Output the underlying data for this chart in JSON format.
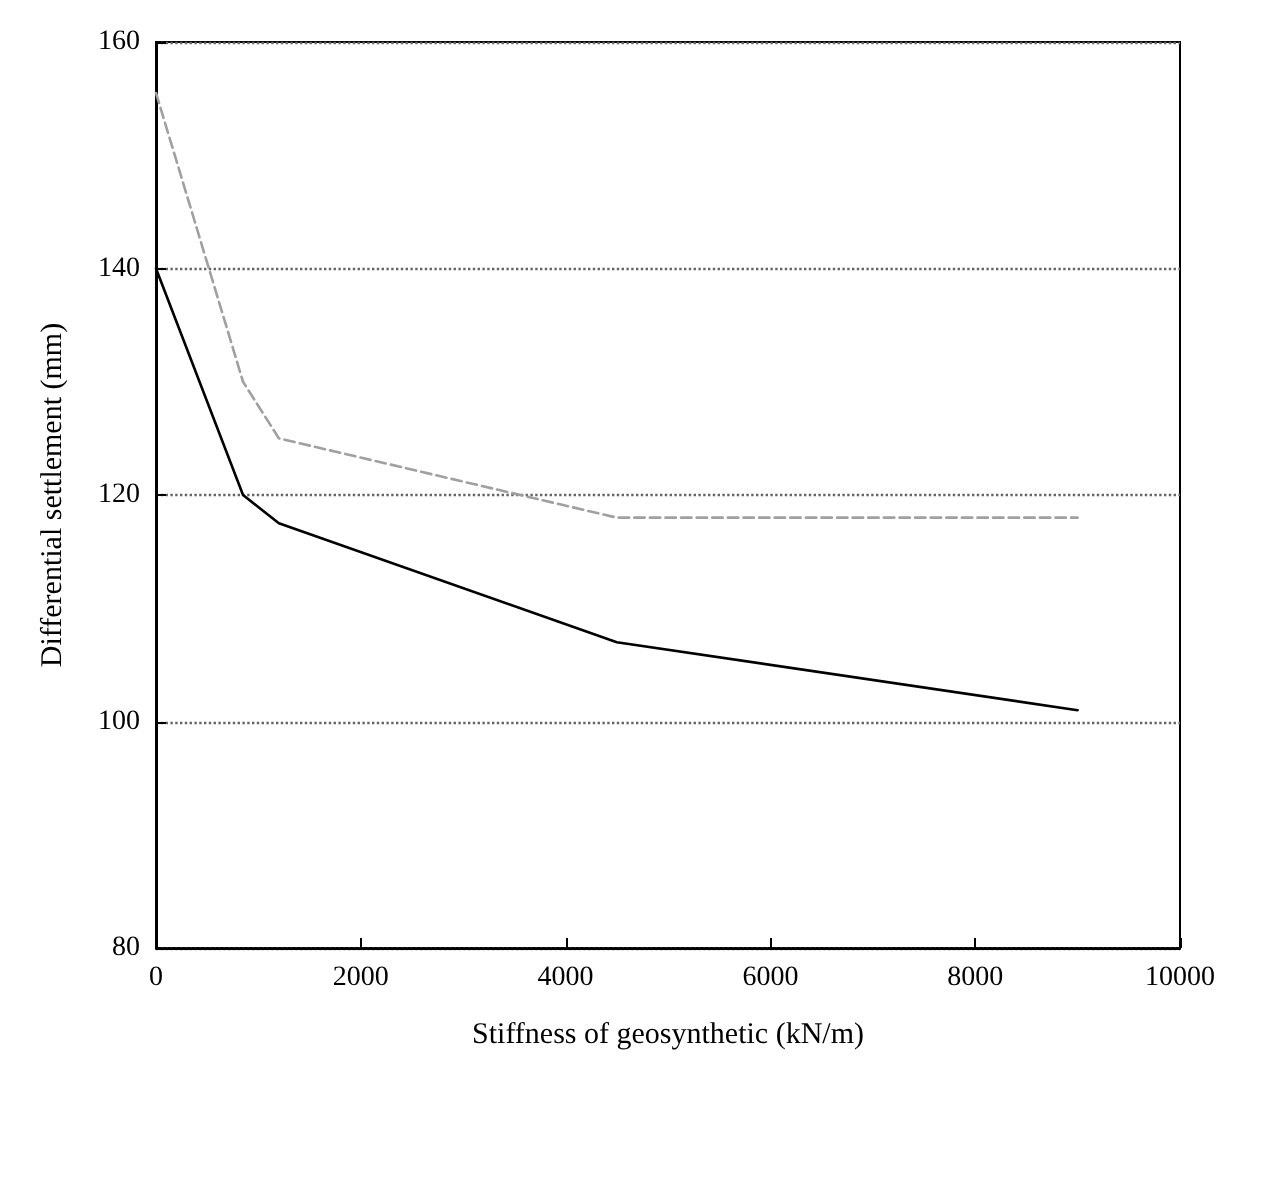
{
  "chart_data": {
    "type": "line",
    "xlabel": "Stiffness of geosynthetic (kN/m)",
    "ylabel": "Differential settlement (mm)",
    "xlim": [
      0,
      10000
    ],
    "xticks": [
      0,
      2000,
      4000,
      6000,
      8000,
      10000
    ],
    "ylim": [
      80,
      160
    ],
    "yticks": [
      80,
      100,
      120,
      140,
      160
    ],
    "grid": "y",
    "marker": "none",
    "series": [
      {
        "color": "#000000",
        "line_style": "solid",
        "x": [
          0,
          850,
          1200,
          4500,
          9000
        ],
        "values": [
          140,
          120,
          117.5,
          107,
          101
        ]
      },
      {
        "color": "#a0a0a0",
        "line_style": "dashed",
        "x": [
          0,
          850,
          1200,
          4500,
          9000
        ],
        "values": [
          155.5,
          130,
          125,
          118,
          118
        ]
      }
    ]
  }
}
